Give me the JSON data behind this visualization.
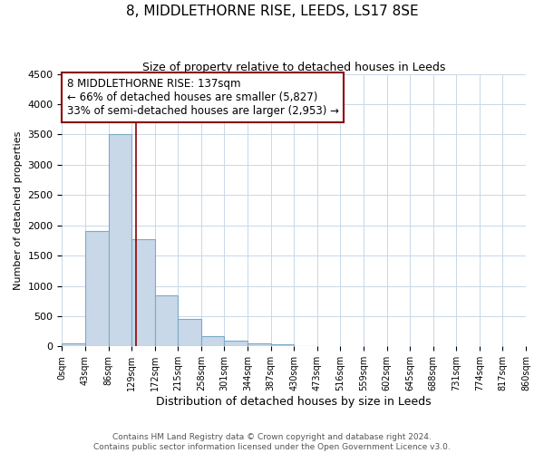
{
  "title": "8, MIDDLETHORNE RISE, LEEDS, LS17 8SE",
  "subtitle": "Size of property relative to detached houses in Leeds",
  "xlabel": "Distribution of detached houses by size in Leeds",
  "ylabel": "Number of detached properties",
  "bar_edges": [
    0,
    43,
    86,
    129,
    172,
    215,
    258,
    301,
    344,
    387,
    430,
    473,
    516,
    559,
    602,
    645,
    688,
    731,
    774,
    817,
    860
  ],
  "bar_heights": [
    50,
    1900,
    3500,
    1775,
    850,
    450,
    175,
    90,
    55,
    30,
    10,
    0,
    0,
    0,
    0,
    0,
    0,
    0,
    0,
    0
  ],
  "bar_color": "#c8d8e8",
  "bar_edgecolor": "#7aaac8",
  "bar_linewidth": 0.8,
  "marker_x": 137,
  "marker_color": "#8b0000",
  "ylim": [
    0,
    4500
  ],
  "xlim": [
    0,
    860
  ],
  "annotation_title": "8 MIDDLETHORNE RISE: 137sqm",
  "annotation_line1": "← 66% of detached houses are smaller (5,827)",
  "annotation_line2": "33% of semi-detached houses are larger (2,953) →",
  "annotation_box_color": "#ffffff",
  "annotation_box_edgecolor": "#8b0000",
  "tick_labels": [
    "0sqm",
    "43sqm",
    "86sqm",
    "129sqm",
    "172sqm",
    "215sqm",
    "258sqm",
    "301sqm",
    "344sqm",
    "387sqm",
    "430sqm",
    "473sqm",
    "516sqm",
    "559sqm",
    "602sqm",
    "645sqm",
    "688sqm",
    "731sqm",
    "774sqm",
    "817sqm",
    "860sqm"
  ],
  "footer_line1": "Contains HM Land Registry data © Crown copyright and database right 2024.",
  "footer_line2": "Contains public sector information licensed under the Open Government Licence v3.0.",
  "bg_color": "#ffffff",
  "grid_color": "#c8d8e8",
  "title_fontsize": 11,
  "subtitle_fontsize": 9,
  "xlabel_fontsize": 9,
  "ylabel_fontsize": 8,
  "tick_fontsize": 7,
  "footer_fontsize": 6.5,
  "annotation_fontsize": 8.5,
  "yticks": [
    0,
    500,
    1000,
    1500,
    2000,
    2500,
    3000,
    3500,
    4000,
    4500
  ]
}
